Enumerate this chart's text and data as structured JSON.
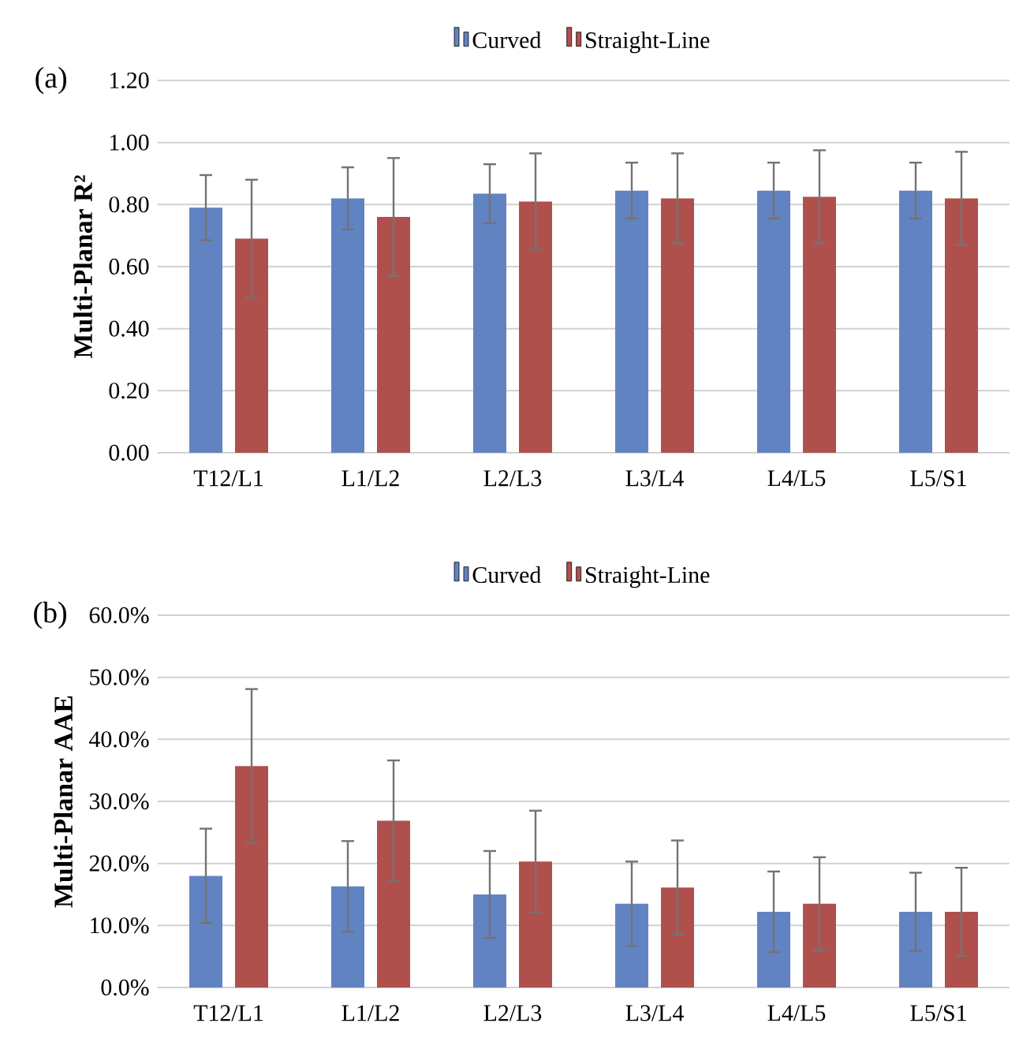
{
  "chart_data": [
    {
      "type": "bar",
      "ylabel": "Multi-Planar R²",
      "annotations": [
        "(a)"
      ],
      "categories": [
        "T12/L1",
        "L1/L2",
        "L2/L3",
        "L3/L4",
        "L4/L5",
        "L5/S1"
      ],
      "series": [
        {
          "name": "Curved",
          "color": "#6283c2",
          "values": [
            0.79,
            0.82,
            0.835,
            0.845,
            0.845,
            0.845
          ],
          "errors": [
            0.105,
            0.1,
            0.095,
            0.09,
            0.09,
            0.09
          ]
        },
        {
          "name": "Straight-Line",
          "color": "#b0504d",
          "values": [
            0.69,
            0.76,
            0.81,
            0.82,
            0.825,
            0.82
          ],
          "errors": [
            0.19,
            0.19,
            0.155,
            0.145,
            0.15,
            0.15
          ]
        }
      ],
      "ylim": [
        0,
        1.2
      ],
      "yticks": [
        {
          "value": 0,
          "label": "0.00"
        },
        {
          "value": 0.2,
          "label": "0.20"
        },
        {
          "value": 0.4,
          "label": "0.40"
        },
        {
          "value": 0.6,
          "label": "0.60"
        },
        {
          "value": 0.8,
          "label": "0.80"
        },
        {
          "value": 1.0,
          "label": "1.00"
        },
        {
          "value": 1.2,
          "label": "1.20"
        }
      ],
      "grid": "y",
      "legend": "top"
    },
    {
      "type": "bar",
      "ylabel": "Multi-Planar AAE",
      "annotations": [
        "(b)"
      ],
      "categories": [
        "T12/L1",
        "L1/L2",
        "L2/L3",
        "L3/L4",
        "L4/L5",
        "L5/S1"
      ],
      "series": [
        {
          "name": "Curved",
          "color": "#6283c2",
          "values": [
            18.0,
            16.3,
            15.0,
            13.5,
            12.2,
            12.2
          ],
          "errors": [
            7.6,
            7.3,
            7.0,
            6.8,
            6.5,
            6.3
          ]
        },
        {
          "name": "Straight-Line",
          "color": "#b0504d",
          "values": [
            35.7,
            26.9,
            20.3,
            16.1,
            13.5,
            12.2
          ],
          "errors": [
            12.4,
            9.7,
            8.2,
            7.6,
            7.5,
            7.1
          ]
        }
      ],
      "ylim": [
        0,
        60
      ],
      "yticks": [
        {
          "value": 0,
          "label": "0.0%"
        },
        {
          "value": 10,
          "label": "10.0%"
        },
        {
          "value": 20,
          "label": "20.0%"
        },
        {
          "value": 30,
          "label": "30.0%"
        },
        {
          "value": 40,
          "label": "40.0%"
        },
        {
          "value": 50,
          "label": "50.0%"
        },
        {
          "value": 60,
          "label": "60.0%"
        }
      ],
      "grid": "y",
      "legend": "top"
    }
  ]
}
